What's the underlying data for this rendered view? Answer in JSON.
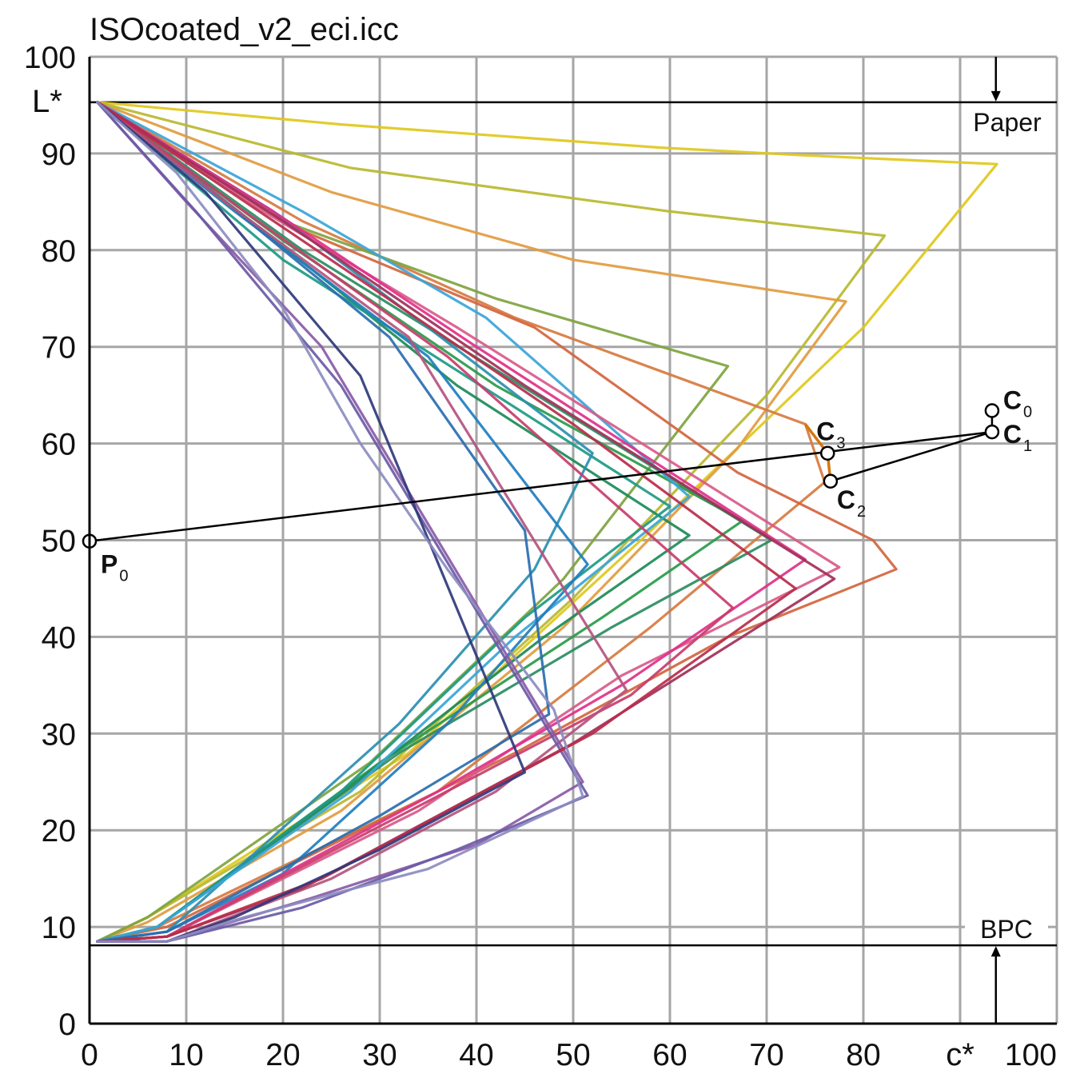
{
  "chart_data": {
    "type": "line",
    "title": "ISOcoated_v2_eci.icc",
    "xlabel": "c*",
    "ylabel": "L*",
    "xlim": [
      0,
      100
    ],
    "ylim": [
      0,
      100
    ],
    "grid": true,
    "x_ticks": [
      "0",
      "10",
      "20",
      "30",
      "40",
      "50",
      "60",
      "70",
      "80",
      "100"
    ],
    "y_ticks": [
      "0",
      "10",
      "20",
      "30",
      "40",
      "50",
      "60",
      "70",
      "80",
      "90",
      "100"
    ],
    "reference_lines": [
      {
        "label": "Paper",
        "L": 95.3
      },
      {
        "label": "BPC",
        "L": 8.1
      }
    ],
    "projection": {
      "points": [
        {
          "label": "P",
          "sub": "0",
          "c": 0,
          "L": 49.9
        },
        {
          "label": "C",
          "sub": "0",
          "c": 93.3,
          "L": 63.4
        },
        {
          "label": "C",
          "sub": "1",
          "c": 93.3,
          "L": 61.2
        },
        {
          "label": "C",
          "sub": "2",
          "c": 76.6,
          "L": 56.1
        },
        {
          "label": "C",
          "sub": "3",
          "c": 76.3,
          "L": 59.0
        }
      ]
    },
    "series": [
      {
        "color": "#e0c81c",
        "points": [
          [
            0.8,
            95.3
          ],
          [
            26,
            93
          ],
          [
            59,
            90.6
          ],
          [
            74,
            89.8
          ],
          [
            93.8,
            88.9
          ],
          [
            80,
            72
          ],
          [
            57,
            50
          ],
          [
            33,
            28
          ],
          [
            6,
            11
          ],
          [
            0.8,
            8.5
          ]
        ]
      },
      {
        "color": "#b8b830",
        "points": [
          [
            0.8,
            95.3
          ],
          [
            27,
            88.5
          ],
          [
            60,
            84
          ],
          [
            82.2,
            81.5
          ],
          [
            70,
            65
          ],
          [
            50,
            44
          ],
          [
            28,
            24
          ],
          [
            6,
            11
          ],
          [
            0.8,
            8.5
          ]
        ]
      },
      {
        "color": "#e19b3f",
        "points": [
          [
            0.8,
            95.3
          ],
          [
            25,
            86
          ],
          [
            50,
            79
          ],
          [
            78.2,
            74.7
          ],
          [
            67,
            59.5
          ],
          [
            49,
            41
          ],
          [
            26,
            22
          ],
          [
            6,
            10.5
          ],
          [
            0.8,
            8.5
          ]
        ]
      },
      {
        "color": "#d77a40",
        "points": [
          [
            0.8,
            95.3
          ],
          [
            22,
            83
          ],
          [
            44,
            73
          ],
          [
            74,
            62
          ],
          [
            76,
            56
          ],
          [
            58,
            41
          ],
          [
            36,
            24
          ],
          [
            7,
            10
          ],
          [
            0.8,
            8.5
          ]
        ]
      },
      {
        "color": "#7ea43e",
        "points": [
          [
            0.8,
            95.3
          ],
          [
            20,
            83
          ],
          [
            42,
            75
          ],
          [
            66,
            68
          ],
          [
            49,
            46
          ],
          [
            29,
            27
          ],
          [
            6,
            11
          ],
          [
            0.8,
            8.5
          ]
        ]
      },
      {
        "color": "#d2653e",
        "points": [
          [
            0.8,
            95.3
          ],
          [
            22,
            82
          ],
          [
            46,
            72
          ],
          [
            67,
            57
          ],
          [
            81,
            50
          ],
          [
            83.4,
            47
          ],
          [
            66,
            40
          ],
          [
            44,
            28
          ],
          [
            8,
            10
          ],
          [
            0.8,
            8.5
          ]
        ]
      },
      {
        "color": "#2a9a4a",
        "points": [
          [
            0.8,
            95.3
          ],
          [
            20,
            81
          ],
          [
            42,
            66
          ],
          [
            67.5,
            52
          ],
          [
            53,
            42
          ],
          [
            30,
            27
          ],
          [
            7,
            10
          ],
          [
            0.8,
            8.5
          ]
        ]
      },
      {
        "color": "#1b8a58",
        "points": [
          [
            0.8,
            95.3
          ],
          [
            18,
            82
          ],
          [
            38,
            66
          ],
          [
            62,
            50.5
          ],
          [
            47,
            40
          ],
          [
            25,
            23
          ],
          [
            7,
            10
          ],
          [
            0.8,
            8.5
          ]
        ]
      },
      {
        "color": "#2a8c62",
        "points": [
          [
            0.8,
            95.3
          ],
          [
            22,
            80
          ],
          [
            43,
            67
          ],
          [
            70.5,
            50
          ],
          [
            54,
            41
          ],
          [
            32,
            28
          ],
          [
            7,
            10
          ],
          [
            0.8,
            8.5
          ]
        ]
      },
      {
        "color": "#1d9a85",
        "points": [
          [
            0.8,
            95.3
          ],
          [
            20,
            79
          ],
          [
            42,
            65
          ],
          [
            60,
            53.5
          ],
          [
            45,
            42
          ],
          [
            26,
            24
          ],
          [
            7,
            10
          ],
          [
            0.8,
            8.5
          ]
        ]
      },
      {
        "color": "#2a8faf",
        "points": [
          [
            0.8,
            95.3
          ],
          [
            19,
            84
          ],
          [
            35,
            72
          ],
          [
            52,
            59
          ],
          [
            46,
            47
          ],
          [
            32,
            31
          ],
          [
            8,
            9.5
          ],
          [
            0.8,
            8.5
          ]
        ]
      },
      {
        "color": "#3aa5d8",
        "points": [
          [
            0.8,
            95.3
          ],
          [
            22,
            84
          ],
          [
            41,
            73
          ],
          [
            62,
            54.5
          ],
          [
            44,
            40
          ],
          [
            27,
            24
          ],
          [
            7,
            10
          ],
          [
            0.8,
            8.5
          ]
        ]
      },
      {
        "color": "#1f7ec0",
        "points": [
          [
            0.8,
            95.3
          ],
          [
            15,
            84
          ],
          [
            35,
            69
          ],
          [
            51.5,
            47.5
          ],
          [
            37,
            31
          ],
          [
            20,
            15.5
          ],
          [
            8,
            9.5
          ],
          [
            0.8,
            8.5
          ]
        ]
      },
      {
        "color": "#2a6eaf",
        "points": [
          [
            0.8,
            95.3
          ],
          [
            14,
            85
          ],
          [
            31,
            71
          ],
          [
            45,
            51
          ],
          [
            47.5,
            32
          ],
          [
            30,
            21.5
          ],
          [
            8,
            9.5
          ],
          [
            0.8,
            8.5
          ]
        ]
      },
      {
        "color": "#d95a8a",
        "points": [
          [
            0.8,
            95.3
          ],
          [
            18,
            84
          ],
          [
            38,
            72
          ],
          [
            77.5,
            47.2
          ],
          [
            55,
            36
          ],
          [
            34,
            22
          ],
          [
            8,
            9
          ],
          [
            0.8,
            8.5
          ]
        ]
      },
      {
        "color": "#e0308a",
        "points": [
          [
            0.8,
            95.3
          ],
          [
            19,
            84
          ],
          [
            40,
            70
          ],
          [
            74,
            48
          ],
          [
            55,
            35
          ],
          [
            36,
            24
          ],
          [
            8,
            9
          ],
          [
            0.8,
            8.5
          ]
        ]
      },
      {
        "color": "#c83d6a",
        "points": [
          [
            0.8,
            95.3
          ],
          [
            16,
            84
          ],
          [
            37,
            69
          ],
          [
            66.5,
            43
          ],
          [
            56,
            34
          ],
          [
            35,
            23
          ],
          [
            8,
            9
          ],
          [
            0.8,
            8.5
          ]
        ]
      },
      {
        "color": "#b4547e",
        "points": [
          [
            0.8,
            95.3
          ],
          [
            14,
            85
          ],
          [
            33,
            71
          ],
          [
            55.5,
            34.5
          ],
          [
            42,
            24
          ],
          [
            25,
            15
          ],
          [
            8,
            8.5
          ],
          [
            0.8,
            8.5
          ]
        ]
      },
      {
        "color": "#8a5aa6",
        "points": [
          [
            0.8,
            95.3
          ],
          [
            10,
            85
          ],
          [
            24,
            70
          ],
          [
            51,
            25
          ],
          [
            40,
            18.5
          ],
          [
            23,
            13
          ],
          [
            8,
            8.5
          ],
          [
            0.8,
            8.5
          ]
        ]
      },
      {
        "color": "#6a5aa6",
        "points": [
          [
            0.8,
            95.3
          ],
          [
            11,
            84
          ],
          [
            26,
            66
          ],
          [
            51.5,
            23.6
          ],
          [
            38,
            18
          ],
          [
            22,
            12
          ],
          [
            8,
            8.5
          ],
          [
            0.8,
            8.5
          ]
        ]
      },
      {
        "color": "#a22f58",
        "points": [
          [
            0.8,
            95.3
          ],
          [
            20,
            83
          ],
          [
            45,
            66
          ],
          [
            77,
            46
          ],
          [
            50,
            29
          ],
          [
            22,
            14
          ],
          [
            8,
            9
          ],
          [
            0.8,
            8.5
          ]
        ]
      },
      {
        "color": "#b82d4a",
        "points": [
          [
            0.8,
            95.3
          ],
          [
            22,
            81
          ],
          [
            50,
            62
          ],
          [
            73,
            45
          ],
          [
            52,
            30
          ],
          [
            24,
            15
          ],
          [
            8,
            9
          ],
          [
            0.8,
            8.5
          ]
        ]
      },
      {
        "color": "#2f3a7a",
        "points": [
          [
            0.8,
            95.3
          ],
          [
            12,
            86
          ],
          [
            28,
            67
          ],
          [
            45,
            26
          ],
          [
            30,
            18
          ],
          [
            15,
            11
          ],
          [
            8,
            8.5
          ],
          [
            0.8,
            8.5
          ]
        ]
      },
      {
        "color": "#8c8cc0",
        "points": [
          [
            0.8,
            95.3
          ],
          [
            9,
            88
          ],
          [
            20,
            74
          ],
          [
            28,
            60
          ],
          [
            37,
            47
          ],
          [
            48,
            32.5
          ],
          [
            51,
            23.5
          ],
          [
            35,
            16
          ],
          [
            16,
            11
          ],
          [
            8,
            8.5
          ],
          [
            0.8,
            8.5
          ]
        ]
      }
    ]
  }
}
